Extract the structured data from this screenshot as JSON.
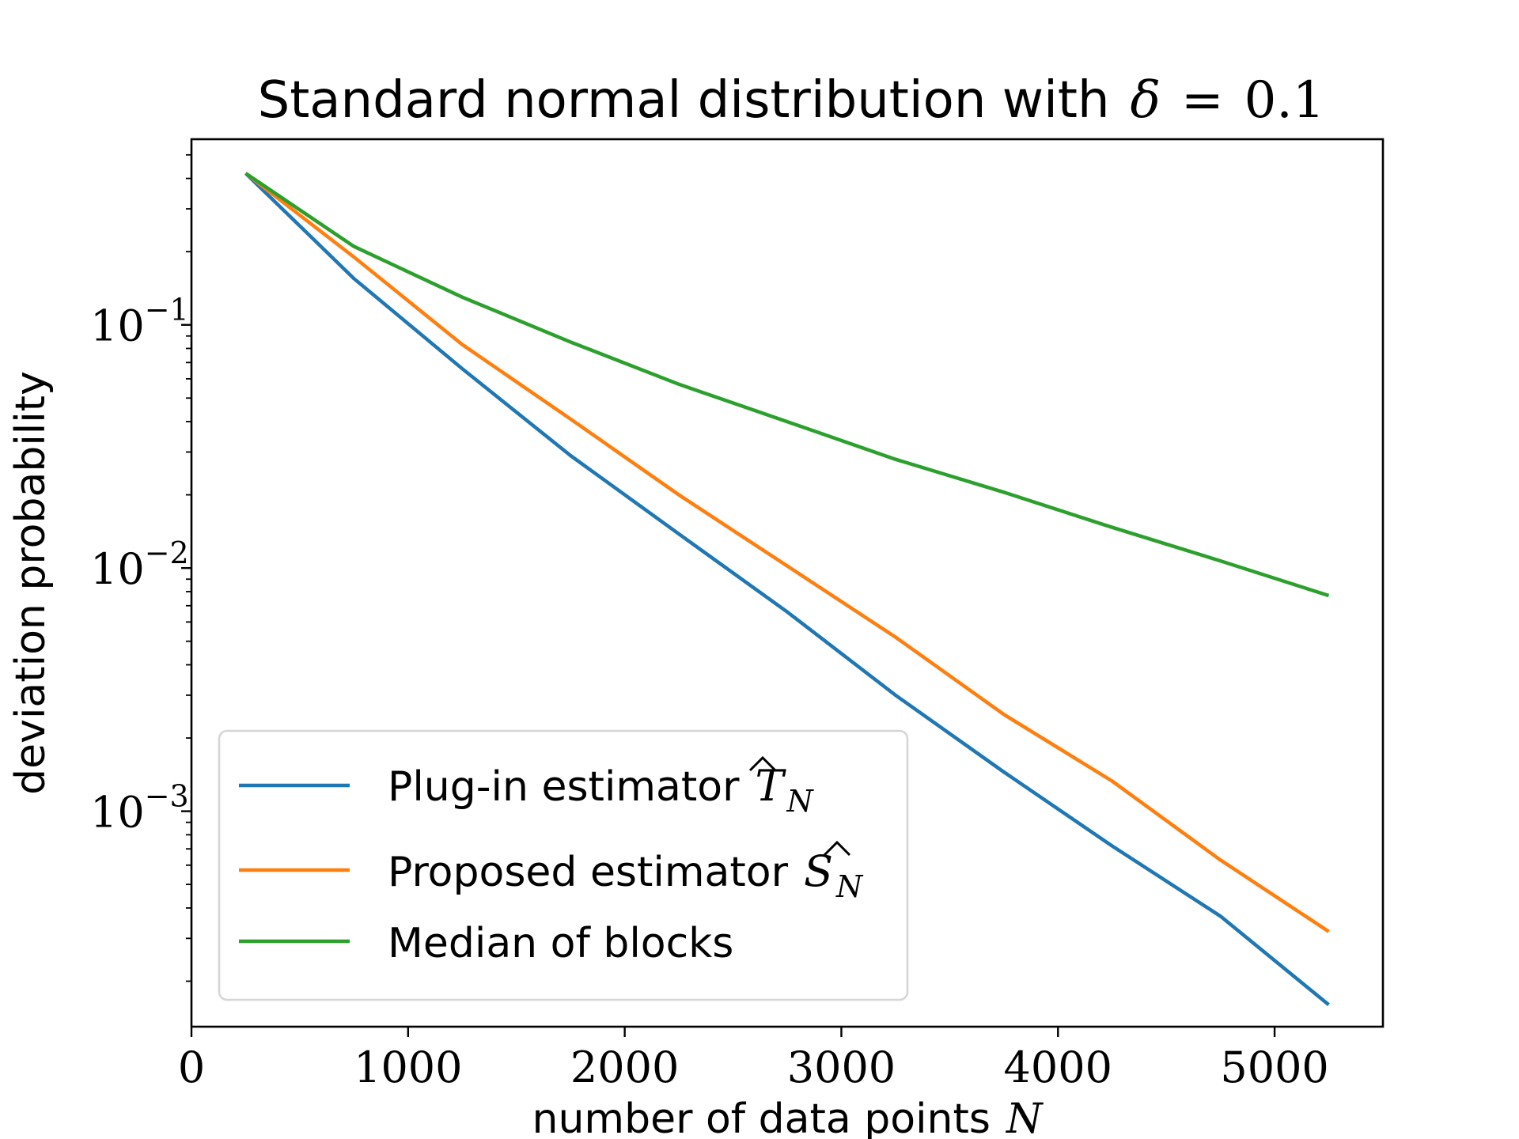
{
  "chart_data": {
    "type": "line",
    "title": {
      "text": "Standard normal distribution with",
      "math_symbol": "δ",
      "math_eq": "=",
      "math_value": "0.1"
    },
    "xlabel": {
      "text": "number of data points",
      "var": "N"
    },
    "ylabel": "deviation probability",
    "xlim": [
      0,
      5500
    ],
    "ylim": [
      0.00013,
      0.58
    ],
    "yscale": "log",
    "x_ticks": [
      {
        "value": 0,
        "label": "0"
      },
      {
        "value": 1000,
        "label": "1000"
      },
      {
        "value": 2000,
        "label": "2000"
      },
      {
        "value": 3000,
        "label": "3000"
      },
      {
        "value": 4000,
        "label": "4000"
      },
      {
        "value": 5000,
        "label": "5000"
      }
    ],
    "y_ticks": [
      {
        "value": 0.1,
        "base": "10",
        "exponent": "−1"
      },
      {
        "value": 0.01,
        "base": "10",
        "exponent": "−2"
      },
      {
        "value": 0.001,
        "base": "10",
        "exponent": "−3"
      }
    ],
    "x": [
      250,
      750,
      1250,
      1750,
      2250,
      2750,
      3250,
      3750,
      4250,
      4750,
      5250
    ],
    "series": [
      {
        "name": "Plug-in estimator",
        "symbol": "T",
        "subscript": "N",
        "color": "#1f77b4",
        "values": [
          0.42,
          0.155,
          0.066,
          0.029,
          0.0138,
          0.0066,
          0.003,
          0.00145,
          0.00072,
          0.00037,
          0.00016
        ]
      },
      {
        "name": "Proposed estimator",
        "symbol": "S",
        "subscript": "N",
        "color": "#ff7f0e",
        "values": [
          0.42,
          0.19,
          0.083,
          0.041,
          0.02,
          0.0102,
          0.0052,
          0.0025,
          0.00133,
          0.00063,
          0.00032
        ]
      },
      {
        "name": "Median of blocks",
        "symbol": "",
        "subscript": "",
        "color": "#2ca02c",
        "values": [
          0.42,
          0.21,
          0.13,
          0.085,
          0.057,
          0.04,
          0.028,
          0.0205,
          0.0147,
          0.0107,
          0.0077
        ]
      }
    ],
    "legend_position": "lower-left",
    "grid": false
  }
}
